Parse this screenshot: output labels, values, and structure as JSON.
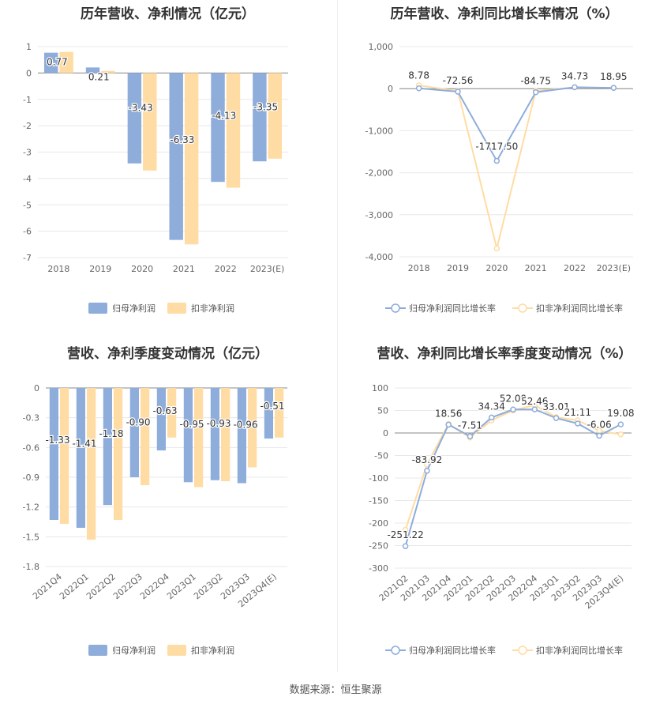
{
  "footer": "数据来源：恒生聚源",
  "colors": {
    "blue": "#8eaddb",
    "orange": "#ffdca3",
    "grid": "#e8e8e8",
    "axis": "#999999"
  },
  "chart_data": [
    {
      "type": "bar",
      "title": "历年营收、净利情况（亿元）",
      "categories": [
        "2018",
        "2019",
        "2020",
        "2021",
        "2022",
        "2023(E)"
      ],
      "series": [
        {
          "name": "归母净利润",
          "values": [
            0.77,
            0.21,
            -3.43,
            -6.33,
            -4.13,
            -3.35
          ],
          "labels": [
            "0.77",
            "0.21",
            "-3.43",
            "-6.33",
            "-4.13",
            "-3.35"
          ]
        },
        {
          "name": "扣非净利润",
          "values": [
            0.8,
            0.08,
            -3.7,
            -6.5,
            -4.35,
            -3.25
          ]
        }
      ],
      "yticks": [
        "1",
        "0",
        "-1",
        "-2",
        "-3",
        "-4",
        "-5",
        "-6",
        "-7"
      ],
      "ylim": [
        -7,
        1
      ],
      "legend": "bottom"
    },
    {
      "type": "line",
      "title": "历年营收、净利同比增长率情况（%）",
      "categories": [
        "2018",
        "2019",
        "2020",
        "2021",
        "2022",
        "2023(E)"
      ],
      "series": [
        {
          "name": "归母净利润同比增长率",
          "values": [
            8.78,
            -72.56,
            -1717.5,
            -84.75,
            34.73,
            18.95
          ],
          "labels": [
            "8.78",
            "-72.56",
            "-1717.50",
            "-84.75",
            "34.73",
            "18.95"
          ]
        },
        {
          "name": "扣非净利润同比增长率",
          "values": [
            80,
            -60,
            -3800,
            -55,
            30,
            20
          ]
        }
      ],
      "yticks": [
        "1,000",
        "0",
        "-1,000",
        "-2,000",
        "-3,000",
        "-4,000"
      ],
      "ylim": [
        -4000,
        1000
      ],
      "legend": "bottom"
    },
    {
      "type": "bar",
      "title": "营收、净利季度变动情况（亿元）",
      "categories": [
        "2021Q4",
        "2022Q1",
        "2022Q2",
        "2022Q3",
        "2022Q4",
        "2023Q1",
        "2023Q2",
        "2023Q3",
        "2023Q4(E)"
      ],
      "series": [
        {
          "name": "归母净利润",
          "values": [
            -1.33,
            -1.41,
            -1.18,
            -0.9,
            -0.63,
            -0.95,
            -0.93,
            -0.96,
            -0.51
          ],
          "labels": [
            "-1.33",
            "-1.41",
            "-1.18",
            "-0.90",
            "-0.63",
            "-0.95",
            "-0.93",
            "-0.96",
            "-0.51"
          ]
        },
        {
          "name": "扣非净利润",
          "values": [
            -1.37,
            -1.53,
            -1.33,
            -0.98,
            -0.5,
            -1.0,
            -0.94,
            -0.8,
            -0.5
          ]
        }
      ],
      "yticks": [
        "0",
        "-0.3",
        "-0.6",
        "-0.9",
        "-1.2",
        "-1.5",
        "-1.8"
      ],
      "ylim": [
        -1.8,
        0
      ],
      "legend": "bottom"
    },
    {
      "type": "line",
      "title": "营收、净利同比增长率季度变动情况（%）",
      "categories": [
        "2021Q2",
        "2021Q3",
        "2021Q4",
        "2022Q1",
        "2022Q2",
        "2022Q3",
        "2022Q4",
        "2023Q1",
        "2023Q2",
        "2023Q3",
        "2023Q4(E)"
      ],
      "series": [
        {
          "name": "归母净利润同比增长率",
          "values": [
            -251.22,
            -83.92,
            18.56,
            -7.51,
            34.34,
            52.09,
            52.46,
            33.01,
            21.11,
            -6.06,
            19.08
          ],
          "labels": [
            "-251.22",
            "-83.92",
            "18.56",
            "-7.51",
            "34.34",
            "52.09",
            "52.46",
            "33.01",
            "21.11",
            "-6.06",
            "19.08"
          ]
        },
        {
          "name": "扣非净利润同比增长率",
          "values": [
            -215,
            -70,
            20,
            -10,
            28,
            50,
            62,
            35,
            28,
            5,
            -3
          ]
        }
      ],
      "yticks": [
        "100",
        "50",
        "0",
        "-50",
        "-100",
        "-150",
        "-200",
        "-250",
        "-300"
      ],
      "ylim": [
        -300,
        100
      ],
      "legend": "bottom"
    }
  ]
}
